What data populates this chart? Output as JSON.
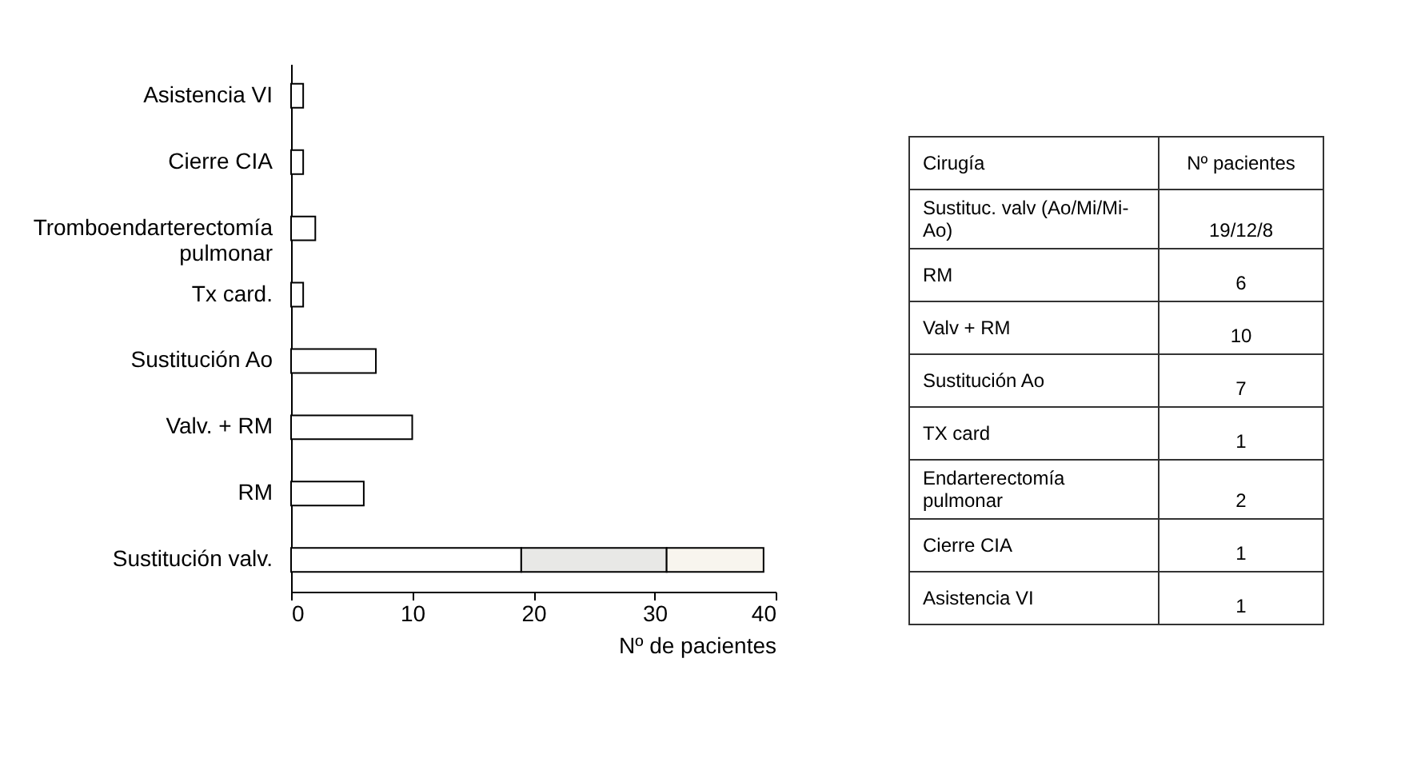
{
  "chart_data": [
    {
      "type": "bar",
      "orientation": "horizontal",
      "stacked": true,
      "xlabel": "Nº de pacientes",
      "categories": [
        "Asistencia VI",
        "Cierre CIA",
        "Tromboendarterectomía pulmonar",
        "Tx card.",
        "Sustitución Ao",
        "Valv. + RM",
        "RM",
        "Sustitución valv."
      ],
      "series": [
        {
          "color": "#ffffff",
          "values": [
            1,
            1,
            2,
            1,
            7,
            10,
            6,
            19
          ]
        },
        {
          "color": "#e8e8e6",
          "values": [
            null,
            null,
            null,
            null,
            null,
            null,
            null,
            12
          ]
        },
        {
          "color": "#f8f5ee",
          "values": [
            null,
            null,
            null,
            null,
            null,
            null,
            null,
            8
          ]
        }
      ],
      "xlim": [
        0,
        40
      ],
      "xticks": [
        0,
        10,
        20,
        30,
        40
      ]
    },
    {
      "type": "other",
      "annotations": [
        "Cirugía",
        "Nº pacientes",
        "Sustituc. valv (Ao/Mi/Mi-Ao)",
        "19/12/8",
        "RM",
        "6",
        "Valv + RM",
        "10",
        "Sustitución Ao",
        "7",
        "TX card",
        "1",
        "Endarterectomía pulmonar",
        "2",
        "Cierre CIA",
        "1",
        "Asistencia VI",
        "1"
      ]
    }
  ]
}
